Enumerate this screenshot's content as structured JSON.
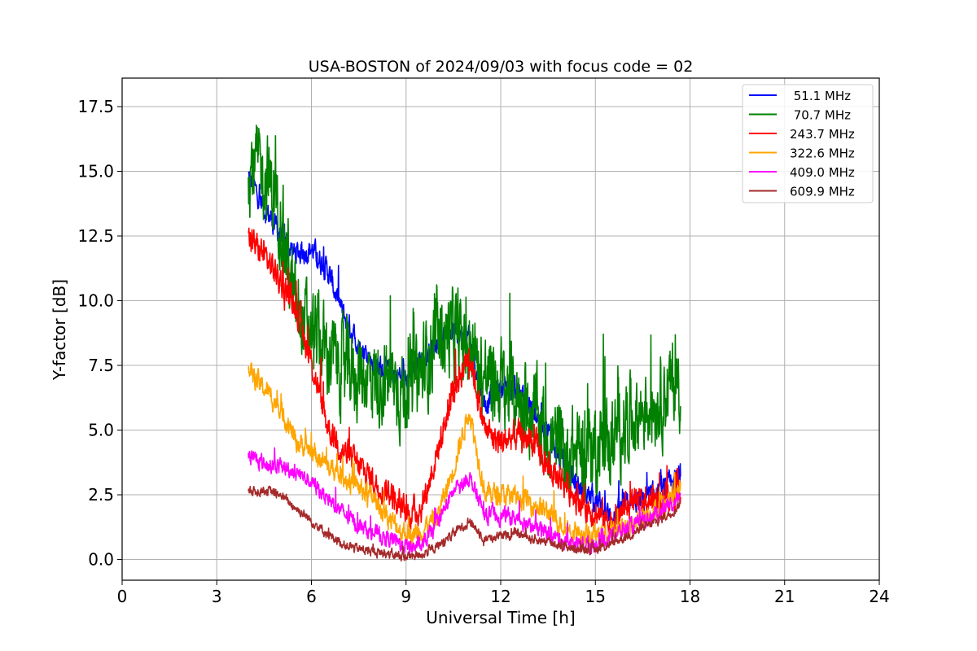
{
  "chart_data": {
    "type": "line",
    "title": "USA-BOSTON of 2024/09/03 with focus code = 02",
    "xlabel": "Universal Time [h]",
    "ylabel": "Y-factor [dB]",
    "xlim": [
      0,
      24
    ],
    "ylim": [
      -0.8,
      18.6
    ],
    "xticks": [
      0,
      3,
      6,
      9,
      12,
      15,
      18,
      21,
      24
    ],
    "xtick_labels": [
      "0",
      "3",
      "6",
      "9",
      "12",
      "15",
      "18",
      "21",
      "24"
    ],
    "yticks": [
      0,
      2.5,
      5,
      7.5,
      10,
      12.5,
      15,
      17.5
    ],
    "ytick_labels": [
      "0.0",
      "2.5",
      "5.0",
      "7.5",
      "10.0",
      "12.5",
      "15.0",
      "17.5"
    ],
    "grid": true,
    "legend_position": "top-right",
    "x": [
      4.0,
      4.5,
      5.0,
      5.5,
      6.0,
      6.5,
      7.0,
      7.5,
      8.0,
      8.5,
      9.0,
      9.5,
      10.0,
      10.5,
      11.0,
      11.5,
      12.0,
      12.5,
      13.0,
      13.5,
      14.0,
      14.5,
      15.0,
      15.5,
      16.0,
      16.5,
      17.0,
      17.5,
      17.7
    ],
    "series": [
      {
        "name": "51.1 MHz",
        "label": " 51.1 MHz",
        "color": "#0000ff",
        "noise": 0.45,
        "values": [
          14.8,
          13.6,
          12.6,
          11.8,
          12.0,
          11.2,
          9.5,
          8.3,
          7.6,
          7.2,
          7.0,
          7.6,
          8.5,
          8.8,
          8.5,
          6.0,
          6.7,
          6.6,
          5.8,
          5.0,
          3.5,
          2.8,
          2.3,
          1.6,
          2.1,
          2.3,
          2.5,
          3.0,
          3.2
        ]
      },
      {
        "name": "70.7 MHz",
        "label": " 70.7 MHz",
        "color": "#008000",
        "noise": 1.6,
        "values": [
          15.3,
          15.0,
          13.6,
          9.5,
          8.8,
          8.0,
          7.4,
          7.2,
          7.0,
          6.9,
          6.5,
          7.2,
          8.6,
          8.7,
          8.3,
          7.0,
          6.8,
          6.3,
          5.8,
          4.8,
          4.0,
          4.2,
          4.5,
          4.5,
          5.5,
          5.8,
          6.3,
          6.8,
          7.0
        ]
      },
      {
        "name": "243.7 MHz",
        "label": "243.7 MHz",
        "color": "#ff0000",
        "noise": 0.55,
        "values": [
          12.4,
          11.8,
          10.8,
          9.8,
          7.6,
          5.2,
          4.2,
          3.6,
          3.0,
          2.6,
          1.7,
          2.0,
          4.2,
          6.5,
          8.0,
          5.0,
          4.5,
          4.8,
          4.6,
          3.5,
          3.0,
          2.3,
          1.8,
          1.5,
          2.0,
          2.2,
          2.4,
          2.6,
          2.9
        ]
      },
      {
        "name": "322.6 MHz",
        "label": "322.6 MHz",
        "color": "#ffa500",
        "noise": 0.4,
        "values": [
          7.3,
          6.6,
          5.9,
          4.6,
          4.2,
          3.6,
          3.2,
          2.8,
          2.3,
          1.5,
          1.0,
          1.1,
          1.7,
          3.5,
          5.8,
          2.6,
          2.5,
          2.4,
          2.2,
          1.8,
          1.3,
          1.0,
          0.9,
          1.0,
          1.3,
          1.7,
          2.0,
          2.5,
          2.8
        ]
      },
      {
        "name": "409.0 MHz",
        "label": "409.0 MHz",
        "color": "#ff00ff",
        "noise": 0.3,
        "values": [
          4.0,
          3.7,
          3.6,
          3.4,
          3.0,
          2.4,
          1.8,
          1.3,
          1.0,
          0.8,
          0.5,
          0.5,
          1.4,
          2.6,
          3.2,
          1.7,
          1.7,
          1.6,
          1.3,
          1.0,
          0.7,
          0.6,
          0.6,
          0.9,
          1.2,
          1.5,
          1.8,
          2.2,
          2.6
        ]
      },
      {
        "name": "609.9 MHz",
        "label": "609.9 MHz",
        "color": "#a52a2a",
        "noise": 0.18,
        "values": [
          2.6,
          2.7,
          2.5,
          2.0,
          1.5,
          1.0,
          0.6,
          0.4,
          0.3,
          0.2,
          0.1,
          0.2,
          0.5,
          1.0,
          1.5,
          0.8,
          0.9,
          1.0,
          0.8,
          0.7,
          0.5,
          0.4,
          0.4,
          0.6,
          0.9,
          1.2,
          1.5,
          1.9,
          2.2
        ]
      }
    ]
  }
}
